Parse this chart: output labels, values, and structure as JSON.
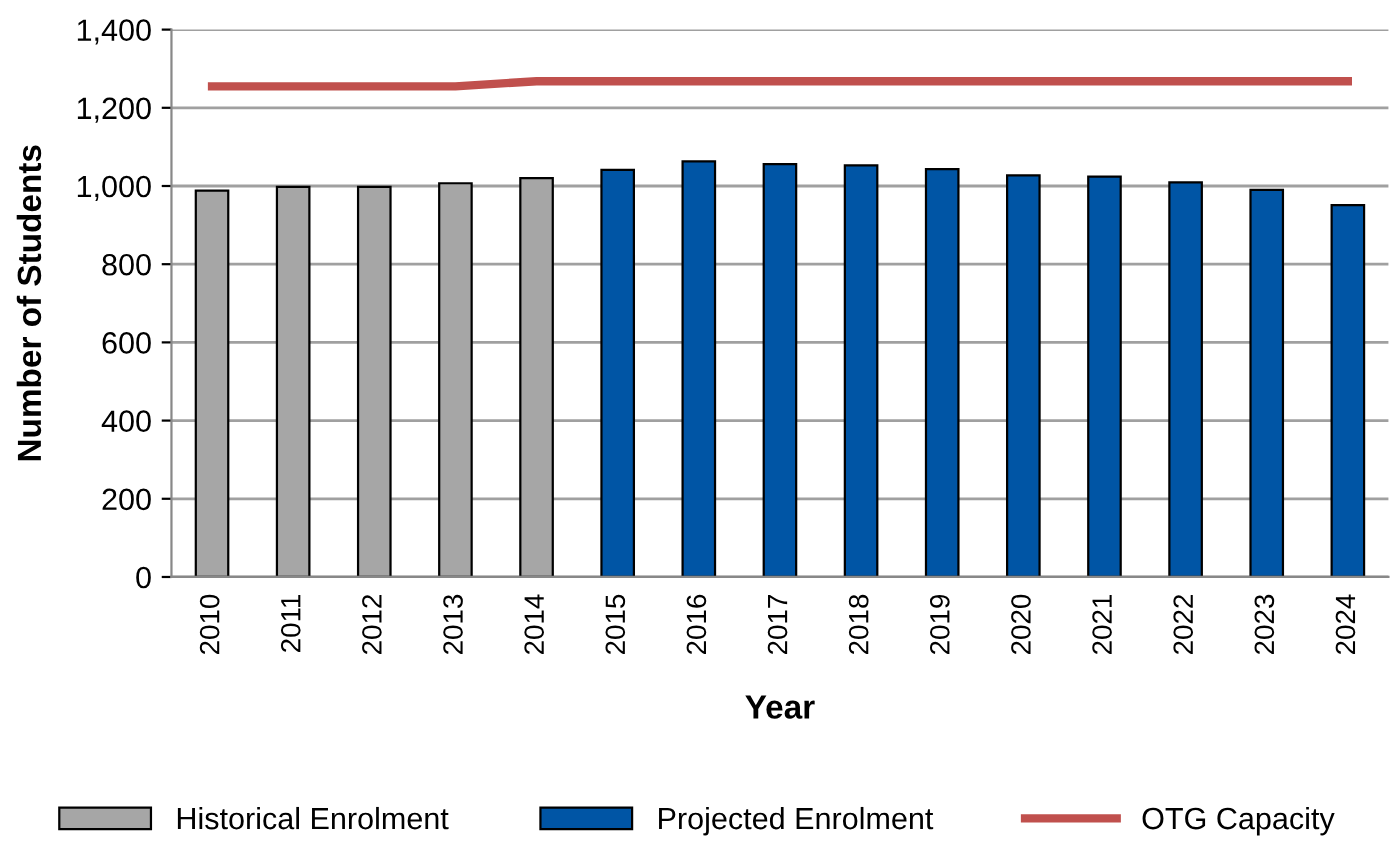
{
  "chart_data": {
    "type": "bar",
    "xlabel": "Year",
    "ylabel": "Number of Students",
    "categories": [
      "2010",
      "2011",
      "2012",
      "2013",
      "2014",
      "2015",
      "2016",
      "2017",
      "2018",
      "2019",
      "2020",
      "2021",
      "2022",
      "2023",
      "2024"
    ],
    "series": [
      {
        "name": "Historical Enrolment",
        "color": "#a6a6a6",
        "values": [
          988,
          998,
          998,
          1007,
          1020,
          null,
          null,
          null,
          null,
          null,
          null,
          null,
          null,
          null,
          null
        ]
      },
      {
        "name": "Projected Enrolment",
        "color": "#0055a5",
        "values": [
          null,
          null,
          null,
          null,
          null,
          1041,
          1063,
          1056,
          1053,
          1043,
          1027,
          1024,
          1009,
          990,
          951
        ]
      },
      {
        "name": "OTG Capacity",
        "type": "line",
        "color": "#c0504d",
        "values": [
          1255,
          1255,
          1255,
          1255,
          1268,
          1268,
          1268,
          1268,
          1268,
          1268,
          1268,
          1268,
          1268,
          1268,
          1268
        ]
      }
    ],
    "ylim": [
      0,
      1400
    ],
    "yticks": [
      {
        "value": 0,
        "label": "0"
      },
      {
        "value": 200,
        "label": "200"
      },
      {
        "value": 400,
        "label": "400"
      },
      {
        "value": 600,
        "label": "600"
      },
      {
        "value": 800,
        "label": "800"
      },
      {
        "value": 1000,
        "label": "1,000"
      },
      {
        "value": 1200,
        "label": "1,200"
      },
      {
        "value": 1400,
        "label": "1,400"
      }
    ],
    "grid": "y",
    "legend": "bottom"
  }
}
